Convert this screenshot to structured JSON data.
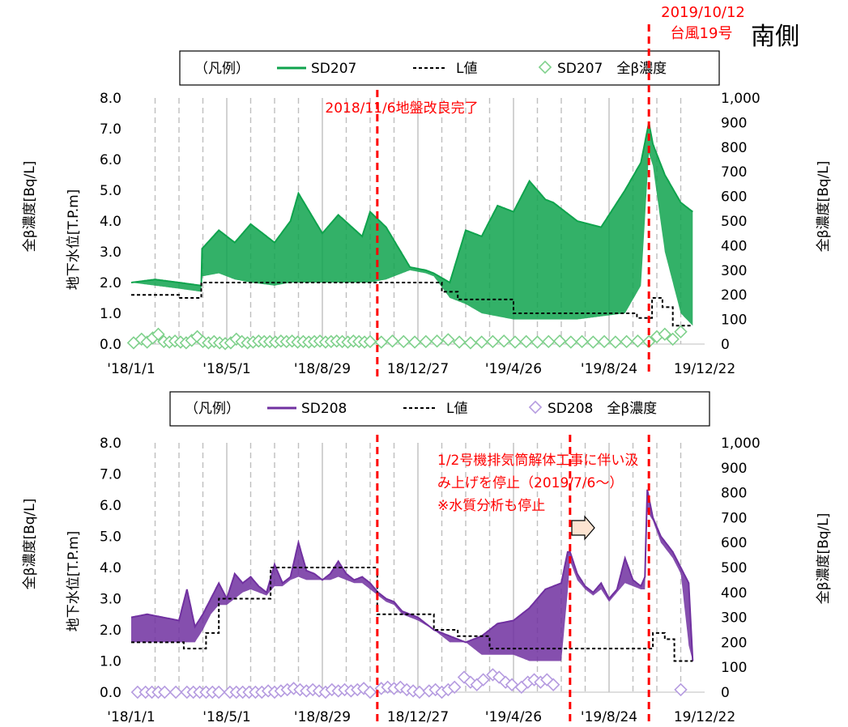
{
  "header": {
    "typhoon_date": "2019/10/12",
    "typhoon_label": "台風19号",
    "side_label": "南側"
  },
  "colors": {
    "sd207": "#0fa34d",
    "sd207_marker": "#7fd18c",
    "sd208": "#7030a0",
    "sd208_marker": "#b59be0",
    "event_line": "#ff0000",
    "grid_dash": "#bfbfbf",
    "grid_solid": "#a6a6a6"
  },
  "chart_data": [
    {
      "type": "line",
      "id": "sd207",
      "legend": {
        "prefix": "（凡例）",
        "level_series": "SD207",
        "limit_series": "L値",
        "beta_series": "SD207　全β濃度"
      },
      "ylabel_left": "地下水位[T.P.m]",
      "ylabel_left_outer": "全β濃度[Bq/L]",
      "ylabel_right": "全β濃度[Bq/L]",
      "ylim_left": [
        0,
        8
      ],
      "ylim_right": [
        0,
        1000
      ],
      "yticks_left": [
        "0.0",
        "1.0",
        "2.0",
        "3.0",
        "4.0",
        "5.0",
        "6.0",
        "7.0",
        "8.0"
      ],
      "yticks_right": [
        "0",
        "100",
        "200",
        "300",
        "400",
        "500",
        "600",
        "700",
        "800",
        "900",
        "1,000"
      ],
      "xticks": [
        "'18/1/1",
        "'18/5/1",
        "'18/8/29",
        "18/12/27",
        "'19/4/26",
        "'19/8/24",
        "19/12/22"
      ],
      "xrange_days": [
        0,
        720
      ],
      "annotation": "2018/11/6地盤改良完了",
      "events_days": [
        309,
        650
      ],
      "level": {
        "x": [
          0,
          30,
          60,
          88,
          89,
          110,
          130,
          150,
          180,
          200,
          210,
          240,
          260,
          290,
          300,
          320,
          350,
          370,
          380,
          400,
          420,
          440,
          460,
          480,
          500,
          520,
          530,
          560,
          590,
          620,
          640,
          650,
          655,
          670,
          690,
          705
        ],
        "y": [
          2.0,
          2.1,
          2.0,
          1.9,
          3.1,
          3.7,
          3.3,
          3.9,
          3.3,
          4.0,
          4.9,
          3.6,
          4.2,
          3.5,
          4.3,
          3.8,
          2.5,
          2.4,
          2.3,
          2.0,
          3.7,
          3.5,
          4.5,
          4.3,
          5.3,
          4.7,
          4.6,
          4.0,
          3.8,
          5.0,
          5.9,
          7.2,
          6.5,
          5.5,
          4.6,
          4.3
        ],
        "lo": [
          2.0,
          1.9,
          1.8,
          1.7,
          2.2,
          2.3,
          2.1,
          2.0,
          1.9,
          2.0,
          2.0,
          2.0,
          2.0,
          2.0,
          2.0,
          2.1,
          2.4,
          2.3,
          2.2,
          1.5,
          1.3,
          1.0,
          0.9,
          0.8,
          0.8,
          0.8,
          0.8,
          0.8,
          0.9,
          1.0,
          1.9,
          6.2,
          5.8,
          3.0,
          1.0,
          0.6
        ]
      },
      "l_value": {
        "x": [
          0,
          60,
          60,
          88,
          88,
          129,
          129,
          271,
          271,
          328,
          328,
          350,
          350,
          390,
          390,
          410,
          410,
          480,
          480,
          580,
          580,
          635,
          635,
          654,
          654,
          667,
          667,
          680,
          680,
          705
        ],
        "y": [
          1.6,
          1.6,
          1.5,
          1.5,
          2.0,
          2.0,
          2.0,
          2.0,
          2.0,
          2.0,
          2.0,
          2.0,
          2.0,
          2.0,
          1.7,
          1.7,
          1.45,
          1.45,
          1.0,
          1.0,
          1.0,
          1.0,
          0.85,
          0.85,
          1.5,
          1.5,
          1.2,
          1.2,
          0.6,
          0.6
        ]
      },
      "beta": {
        "x": [
          3,
          13,
          20,
          27,
          34,
          41,
          48,
          55,
          62,
          69,
          76,
          83,
          90,
          97,
          104,
          111,
          118,
          125,
          132,
          139,
          146,
          153,
          160,
          167,
          174,
          181,
          188,
          195,
          202,
          209,
          216,
          223,
          230,
          237,
          244,
          251,
          258,
          265,
          272,
          279,
          286,
          293,
          300,
          314,
          328,
          342,
          356,
          370,
          384,
          398,
          412,
          426,
          440,
          454,
          468,
          482,
          496,
          510,
          524,
          538,
          552,
          566,
          580,
          594,
          608,
          622,
          636,
          650,
          660,
          670,
          680,
          690
        ],
        "y": [
          5,
          20,
          8,
          25,
          40,
          10,
          8,
          12,
          8,
          5,
          15,
          30,
          10,
          5,
          10,
          5,
          2,
          5,
          20,
          10,
          5,
          8,
          12,
          10,
          10,
          8,
          12,
          10,
          12,
          8,
          10,
          8,
          10,
          12,
          8,
          10,
          12,
          10,
          8,
          12,
          10,
          8,
          10,
          8,
          12,
          10,
          8,
          10,
          12,
          18,
          8,
          5,
          8,
          10,
          12,
          8,
          10,
          8,
          10,
          12,
          8,
          10,
          8,
          10,
          8,
          10,
          12,
          10,
          30,
          40,
          20,
          50
        ]
      }
    },
    {
      "type": "line",
      "id": "sd208",
      "legend": {
        "prefix": "（凡例）",
        "level_series": "SD208",
        "limit_series": "L値",
        "beta_series": "SD208　全β濃度"
      },
      "ylabel_left": "地下水位[T.P.m]",
      "ylabel_left_outer": "全β濃度[Bq/L]",
      "ylabel_right": "全β濃度[Bq/L]",
      "ylim_left": [
        0,
        8
      ],
      "ylim_right": [
        0,
        1000
      ],
      "yticks_left": [
        "0.0",
        "1.0",
        "2.0",
        "3.0",
        "4.0",
        "5.0",
        "6.0",
        "7.0",
        "8.0"
      ],
      "yticks_right": [
        "0",
        "100",
        "200",
        "300",
        "400",
        "500",
        "600",
        "700",
        "800",
        "900",
        "1,000"
      ],
      "xticks": [
        "'18/1/1",
        "'18/5/1",
        "'18/8/29",
        "18/12/27",
        "'19/4/26",
        "'19/8/24",
        "19/12/22"
      ],
      "xrange_days": [
        0,
        720
      ],
      "annotation_lines": [
        "1/2号機排気筒解体工事に伴い汲",
        "み上げを停止（2019/7/6～）",
        "※水質分析も停止"
      ],
      "events_days": [
        309,
        551,
        650
      ],
      "level": {
        "x": [
          0,
          20,
          40,
          60,
          70,
          80,
          90,
          100,
          110,
          120,
          130,
          140,
          150,
          160,
          170,
          180,
          190,
          200,
          210,
          220,
          230,
          240,
          250,
          260,
          270,
          280,
          290,
          300,
          310,
          320,
          330,
          340,
          360,
          380,
          400,
          420,
          440,
          460,
          480,
          500,
          520,
          540,
          548,
          551,
          560,
          570,
          580,
          590,
          600,
          610,
          620,
          630,
          640,
          645,
          648,
          655,
          665,
          680,
          690,
          700,
          705
        ],
        "y": [
          2.4,
          2.5,
          2.4,
          2.3,
          3.3,
          2.1,
          2.5,
          3.0,
          3.5,
          3.0,
          3.8,
          3.5,
          3.7,
          3.4,
          3.2,
          4.1,
          3.5,
          3.7,
          4.8,
          3.9,
          3.8,
          3.6,
          3.8,
          4.2,
          3.8,
          3.6,
          3.7,
          3.5,
          3.2,
          3.0,
          2.9,
          2.6,
          2.4,
          2.0,
          1.8,
          1.6,
          1.8,
          2.2,
          2.3,
          2.7,
          3.3,
          3.5,
          4.5,
          4.5,
          3.8,
          3.4,
          3.2,
          3.5,
          3.0,
          3.3,
          4.3,
          3.6,
          3.4,
          3.7,
          6.5,
          5.6,
          5.0,
          4.5,
          4.0,
          3.5,
          1.0
        ],
        "lo": [
          1.6,
          1.6,
          1.6,
          1.6,
          1.6,
          1.6,
          2.0,
          2.5,
          2.8,
          2.8,
          3.0,
          3.2,
          3.3,
          3.2,
          3.1,
          3.4,
          3.4,
          3.6,
          3.7,
          3.6,
          3.6,
          3.6,
          3.6,
          3.7,
          3.6,
          3.5,
          3.5,
          3.3,
          3.1,
          2.9,
          2.8,
          2.5,
          2.3,
          2.0,
          1.6,
          1.6,
          1.2,
          1.2,
          1.2,
          1.0,
          1.0,
          1.0,
          3.2,
          4.2,
          3.6,
          3.3,
          3.1,
          3.3,
          2.9,
          3.2,
          3.5,
          3.4,
          3.3,
          3.3,
          5.8,
          5.5,
          4.8,
          4.3,
          3.8,
          1.5,
          1.0
        ]
      },
      "l_value": {
        "x": [
          0,
          66,
          66,
          94,
          94,
          110,
          110,
          175,
          175,
          309,
          309,
          350,
          350,
          380,
          380,
          410,
          410,
          450,
          450,
          530,
          530,
          655,
          655,
          670,
          670,
          682,
          682,
          705
        ],
        "y": [
          1.6,
          1.6,
          1.4,
          1.4,
          1.9,
          1.9,
          3.0,
          3.0,
          4.0,
          4.0,
          2.5,
          2.5,
          2.5,
          2.5,
          2.0,
          2.0,
          1.8,
          1.8,
          1.4,
          1.4,
          1.4,
          1.4,
          1.9,
          1.9,
          1.7,
          1.7,
          1.0,
          1.0
        ]
      },
      "beta": {
        "x": [
          8,
          18,
          26,
          34,
          42,
          56,
          70,
          78,
          86,
          94,
          102,
          110,
          124,
          132,
          140,
          148,
          156,
          164,
          172,
          180,
          188,
          196,
          204,
          212,
          220,
          228,
          236,
          244,
          252,
          260,
          268,
          276,
          284,
          292,
          300,
          314,
          322,
          330,
          338,
          346,
          354,
          362,
          374,
          382,
          390,
          398,
          406,
          418,
          426,
          434,
          442,
          454,
          462,
          470,
          478,
          490,
          498,
          506,
          514,
          522,
          530,
          690
        ],
        "y": [
          0,
          0,
          0,
          0,
          0,
          0,
          0,
          0,
          0,
          0,
          0,
          0,
          0,
          0,
          0,
          0,
          0,
          0,
          5,
          0,
          5,
          10,
          15,
          10,
          5,
          10,
          5,
          0,
          10,
          5,
          10,
          5,
          10,
          15,
          0,
          15,
          20,
          15,
          20,
          10,
          5,
          0,
          5,
          10,
          0,
          10,
          20,
          60,
          40,
          30,
          50,
          70,
          60,
          40,
          30,
          20,
          40,
          50,
          40,
          50,
          30,
          10
        ]
      }
    }
  ]
}
